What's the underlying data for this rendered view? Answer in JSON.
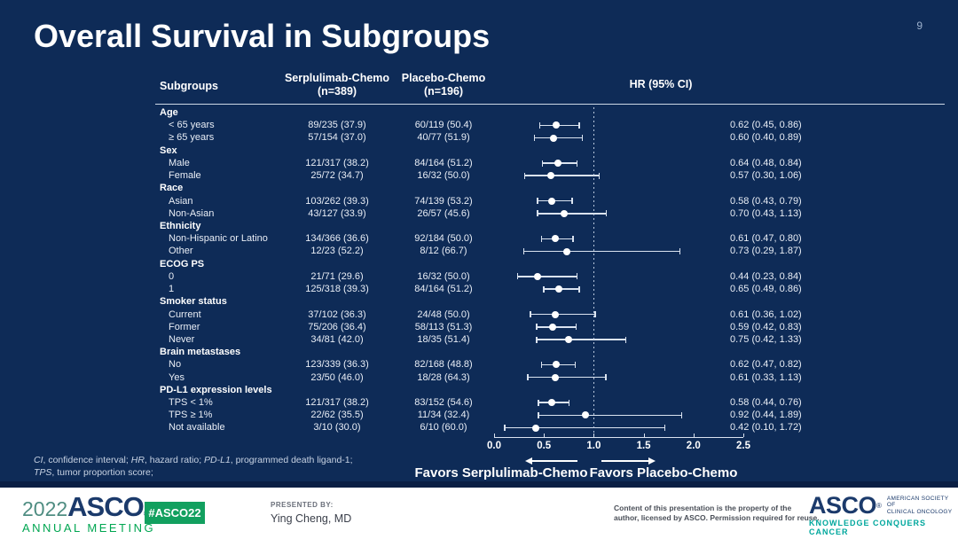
{
  "slide": {
    "title": "Overall Survival in Subgroups",
    "page_number": "9"
  },
  "colors": {
    "background": "#0e2b57",
    "accent_green": "#00a651",
    "badge_green": "#12a05f",
    "navy_logo": "#1b3a6b",
    "tagline_teal": "#00a79d",
    "text_light": "#e9eef6"
  },
  "table": {
    "headers": {
      "subgroups": "Subgroups",
      "arm1_line1": "Serplulimab-Chemo",
      "arm1_line2": "(n=389)",
      "arm2_line1": "Placebo-Chemo",
      "arm2_line2": "(n=196)",
      "hr": "HR (95% CI)"
    },
    "groups": [
      {
        "label": "Age",
        "rows": [
          {
            "label": "< 65 years",
            "arm1": "89/235 (37.9)",
            "arm2": "60/119 (50.4)",
            "hr_text": "0.62 (0.45, 0.86)",
            "hr": 0.62,
            "lo": 0.45,
            "hi": 0.86
          },
          {
            "label": "≥ 65 years",
            "arm1": "57/154 (37.0)",
            "arm2": "40/77 (51.9)",
            "hr_text": "0.60 (0.40, 0.89)",
            "hr": 0.6,
            "lo": 0.4,
            "hi": 0.89
          }
        ]
      },
      {
        "label": "Sex",
        "rows": [
          {
            "label": "Male",
            "arm1": "121/317 (38.2)",
            "arm2": "84/164 (51.2)",
            "hr_text": "0.64 (0.48, 0.84)",
            "hr": 0.64,
            "lo": 0.48,
            "hi": 0.84
          },
          {
            "label": "Female",
            "arm1": "25/72 (34.7)",
            "arm2": "16/32 (50.0)",
            "hr_text": "0.57 (0.30, 1.06)",
            "hr": 0.57,
            "lo": 0.3,
            "hi": 1.06
          }
        ]
      },
      {
        "label": "Race",
        "rows": [
          {
            "label": "Asian",
            "arm1": "103/262 (39.3)",
            "arm2": "74/139 (53.2)",
            "hr_text": "0.58 (0.43, 0.79)",
            "hr": 0.58,
            "lo": 0.43,
            "hi": 0.79
          },
          {
            "label": "Non-Asian",
            "arm1": "43/127 (33.9)",
            "arm2": "26/57 (45.6)",
            "hr_text": "0.70 (0.43, 1.13)",
            "hr": 0.7,
            "lo": 0.43,
            "hi": 1.13
          }
        ]
      },
      {
        "label": "Ethnicity",
        "rows": [
          {
            "label": "Non-Hispanic or Latino",
            "arm1": "134/366 (36.6)",
            "arm2": "92/184 (50.0)",
            "hr_text": "0.61 (0.47, 0.80)",
            "hr": 0.61,
            "lo": 0.47,
            "hi": 0.8
          },
          {
            "label": "Other",
            "arm1": "12/23 (52.2)",
            "arm2": "8/12 (66.7)",
            "hr_text": "0.73 (0.29, 1.87)",
            "hr": 0.73,
            "lo": 0.29,
            "hi": 1.87
          }
        ]
      },
      {
        "label": "ECOG PS",
        "rows": [
          {
            "label": "0",
            "arm1": "21/71 (29.6)",
            "arm2": "16/32 (50.0)",
            "hr_text": "0.44 (0.23, 0.84)",
            "hr": 0.44,
            "lo": 0.23,
            "hi": 0.84
          },
          {
            "label": "1",
            "arm1": "125/318 (39.3)",
            "arm2": "84/164 (51.2)",
            "hr_text": "0.65 (0.49, 0.86)",
            "hr": 0.65,
            "lo": 0.49,
            "hi": 0.86
          }
        ]
      },
      {
        "label": "Smoker status",
        "rows": [
          {
            "label": "Current",
            "arm1": "37/102 (36.3)",
            "arm2": "24/48 (50.0)",
            "hr_text": "0.61 (0.36, 1.02)",
            "hr": 0.61,
            "lo": 0.36,
            "hi": 1.02
          },
          {
            "label": "Former",
            "arm1": "75/206 (36.4)",
            "arm2": "58/113 (51.3)",
            "hr_text": "0.59 (0.42, 0.83)",
            "hr": 0.59,
            "lo": 0.42,
            "hi": 0.83
          },
          {
            "label": "Never",
            "arm1": "34/81 (42.0)",
            "arm2": "18/35 (51.4)",
            "hr_text": "0.75 (0.42, 1.33)",
            "hr": 0.75,
            "lo": 0.42,
            "hi": 1.33
          }
        ]
      },
      {
        "label": "Brain metastases",
        "rows": [
          {
            "label": "No",
            "arm1": "123/339 (36.3)",
            "arm2": "82/168 (48.8)",
            "hr_text": "0.62 (0.47, 0.82)",
            "hr": 0.62,
            "lo": 0.47,
            "hi": 0.82
          },
          {
            "label": "Yes",
            "arm1": "23/50 (46.0)",
            "arm2": "18/28 (64.3)",
            "hr_text": "0.61 (0.33, 1.13)",
            "hr": 0.61,
            "lo": 0.33,
            "hi": 1.13
          }
        ]
      },
      {
        "label": "PD-L1 expression levels",
        "rows": [
          {
            "label": "TPS < 1%",
            "arm1": "121/317 (38.2)",
            "arm2": "83/152 (54.6)",
            "hr_text": "0.58 (0.44, 0.76)",
            "hr": 0.58,
            "lo": 0.44,
            "hi": 0.76
          },
          {
            "label": "TPS ≥ 1%",
            "arm1": "22/62 (35.5)",
            "arm2": "11/34 (32.4)",
            "hr_text": "0.92 (0.44, 1.89)",
            "hr": 0.92,
            "lo": 0.44,
            "hi": 1.89
          },
          {
            "label": "Not available",
            "arm1": "3/10 (30.0)",
            "arm2": "6/10 (60.0)",
            "hr_text": "0.42 (0.10, 1.72)",
            "hr": 0.42,
            "lo": 0.1,
            "hi": 1.72
          }
        ]
      }
    ]
  },
  "axis": {
    "min": 0,
    "max": 2.5,
    "ticks": [
      "0.0",
      "0.5",
      "1.0",
      "1.5",
      "2.0",
      "2.5"
    ],
    "ref_line": 1.0
  },
  "favors": {
    "left": "Favors Serplulimab-Chemo",
    "right": "Favors Placebo-Chemo"
  },
  "footnote": {
    "lines": [
      [
        {
          "t": "CI",
          "i": true
        },
        {
          "t": ", confidence interval; ",
          "i": false
        },
        {
          "t": "HR",
          "i": true
        },
        {
          "t": ", hazard ratio; ",
          "i": false
        },
        {
          "t": "PD-L1",
          "i": true
        },
        {
          "t": ", programmed death ligand-1;",
          "i": false
        }
      ],
      [
        {
          "t": "TPS",
          "i": true
        },
        {
          "t": ", tumor proportion score;",
          "i": false
        }
      ]
    ]
  },
  "footer": {
    "logo_year": "2022",
    "logo_asco": "ASCO",
    "logo_reg": "®",
    "logo_meeting": "ANNUAL MEETING",
    "hashtag": "#ASCO22",
    "presented_label": "PRESENTED BY:",
    "presenter": "Ying Cheng, MD",
    "rights_line1": "Content of this presentation is the property of the",
    "rights_line2": "author, licensed by ASCO. Permission required for reuse.",
    "asco_right": "ASCO",
    "asco_right_reg": "®",
    "asco_right_sub1": "AMERICAN SOCIETY OF",
    "asco_right_sub2": "CLINICAL ONCOLOGY",
    "asco_tagline": "KNOWLEDGE CONQUERS CANCER"
  },
  "chart_data": {
    "type": "scatter",
    "subtype": "forest-plot",
    "title": "Overall Survival in Subgroups",
    "xlabel": "HR (95% CI)",
    "xlim": [
      0,
      2.5
    ],
    "x_ticks": [
      0.0,
      0.5,
      1.0,
      1.5,
      2.0,
      2.5
    ],
    "reference_line_x": 1.0,
    "annotations": [
      "Favors Serplulimab-Chemo",
      "Favors Placebo-Chemo"
    ],
    "categories": [
      "Age: < 65 years",
      "Age: ≥ 65 years",
      "Sex: Male",
      "Sex: Female",
      "Race: Asian",
      "Race: Non-Asian",
      "Ethnicity: Non-Hispanic or Latino",
      "Ethnicity: Other",
      "ECOG PS: 0",
      "ECOG PS: 1",
      "Smoker status: Current",
      "Smoker status: Former",
      "Smoker status: Never",
      "Brain metastases: No",
      "Brain metastases: Yes",
      "PD-L1: TPS < 1%",
      "PD-L1: TPS ≥ 1%",
      "PD-L1: Not available"
    ],
    "series": [
      {
        "name": "Hazard ratio",
        "values": [
          0.62,
          0.6,
          0.64,
          0.57,
          0.58,
          0.7,
          0.61,
          0.73,
          0.44,
          0.65,
          0.61,
          0.59,
          0.75,
          0.62,
          0.61,
          0.58,
          0.92,
          0.42
        ]
      },
      {
        "name": "CI lower",
        "values": [
          0.45,
          0.4,
          0.48,
          0.3,
          0.43,
          0.43,
          0.47,
          0.29,
          0.23,
          0.49,
          0.36,
          0.42,
          0.42,
          0.47,
          0.33,
          0.44,
          0.44,
          0.1
        ]
      },
      {
        "name": "CI upper",
        "values": [
          0.86,
          0.89,
          0.84,
          1.06,
          0.79,
          1.13,
          0.8,
          1.87,
          0.84,
          0.86,
          1.02,
          0.83,
          1.33,
          0.82,
          1.13,
          0.76,
          1.89,
          1.72
        ]
      },
      {
        "name": "Serplulimab-Chemo events/n (%)",
        "values": [
          "89/235 (37.9)",
          "57/154 (37.0)",
          "121/317 (38.2)",
          "25/72 (34.7)",
          "103/262 (39.3)",
          "43/127 (33.9)",
          "134/366 (36.6)",
          "12/23 (52.2)",
          "21/71 (29.6)",
          "125/318 (39.3)",
          "37/102 (36.3)",
          "75/206 (36.4)",
          "34/81 (42.0)",
          "123/339 (36.3)",
          "23/50 (46.0)",
          "121/317 (38.2)",
          "22/62 (35.5)",
          "3/10 (30.0)"
        ]
      },
      {
        "name": "Placebo-Chemo events/n (%)",
        "values": [
          "60/119 (50.4)",
          "40/77 (51.9)",
          "84/164 (51.2)",
          "16/32 (50.0)",
          "74/139 (53.2)",
          "26/57 (45.6)",
          "92/184 (50.0)",
          "8/12 (66.7)",
          "16/32 (50.0)",
          "84/164 (51.2)",
          "24/48 (50.0)",
          "58/113 (51.3)",
          "18/35 (51.4)",
          "82/168 (48.8)",
          "18/28 (64.3)",
          "83/152 (54.6)",
          "11/34 (32.4)",
          "6/10 (60.0)"
        ]
      }
    ]
  }
}
